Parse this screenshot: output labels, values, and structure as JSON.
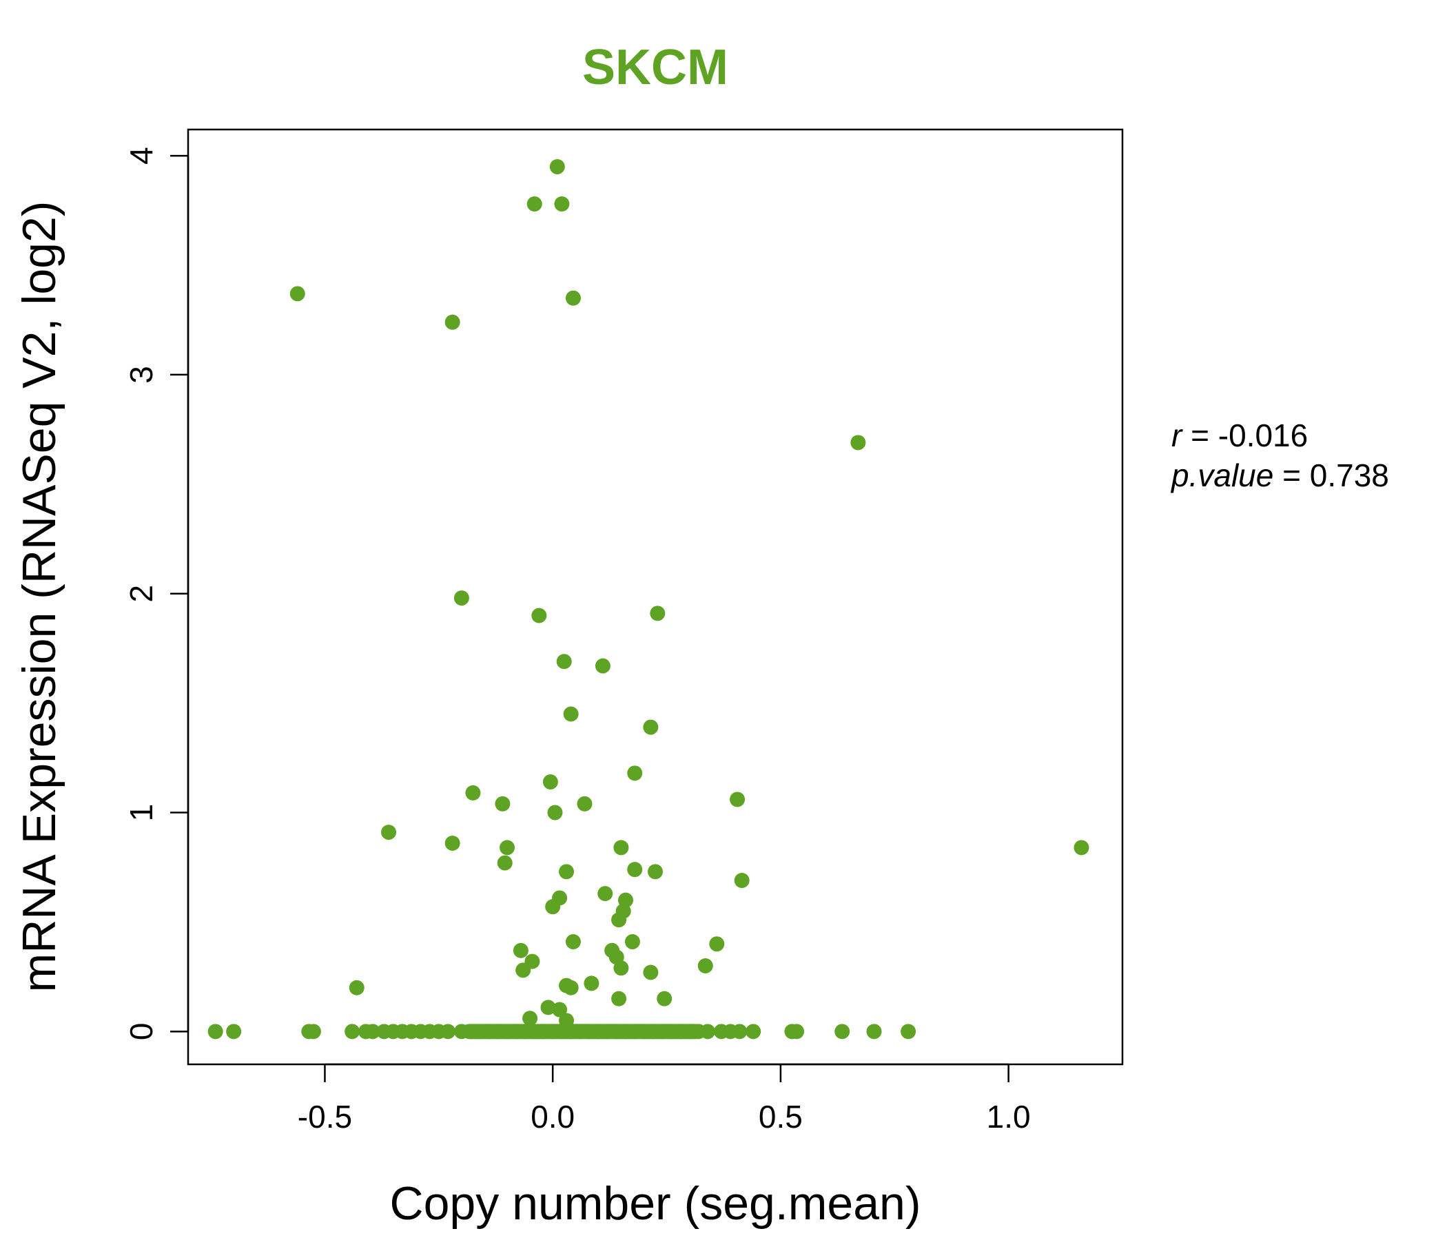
{
  "chart_data": {
    "type": "scatter",
    "title": "SKCM",
    "xlabel": "Copy number (seg.mean)",
    "ylabel": "mRNA Expression (RNASeq V2, log2)",
    "xlim": [
      -0.8,
      1.25
    ],
    "ylim": [
      -0.15,
      4.12
    ],
    "xticks": [
      -0.5,
      0.0,
      0.5,
      1.0
    ],
    "xtick_labels": [
      "-0.5",
      "0.0",
      "0.5",
      "1.0"
    ],
    "yticks": [
      0,
      1,
      2,
      3,
      4
    ],
    "ytick_labels": [
      "0",
      "1",
      "2",
      "3",
      "4"
    ],
    "grid": false,
    "point_color": "#5fa324",
    "title_color": "#5fa324",
    "stats": {
      "r_label": "r",
      "r_value": "-0.016",
      "p_label": "p.value",
      "p_value": "0.738"
    },
    "series": [
      {
        "x": [
          0.01,
          -0.04,
          0.02,
          -0.56,
          0.045,
          -0.22,
          0.67,
          -0.2,
          -0.03,
          0.23,
          0.025,
          0.11,
          0.04,
          0.215,
          0.18,
          -0.005,
          -0.175,
          -0.11,
          0.07,
          0.005,
          0.405,
          -0.36,
          -0.22,
          1.16,
          0.15,
          -0.1,
          -0.105,
          0.03,
          0.225,
          0.18,
          0.415,
          0.015,
          0.115,
          0.16,
          0.0,
          0.155,
          0.145,
          0.045,
          0.175,
          0.36,
          0.13,
          -0.07,
          0.14,
          -0.045,
          0.335,
          -0.065,
          0.15,
          0.215,
          0.085,
          -0.43,
          0.03,
          0.04,
          0.145,
          0.245,
          -0.01,
          0.015,
          -0.05,
          0.03,
          -0.74,
          -0.7,
          -0.535,
          -0.525,
          -0.44,
          -0.41,
          -0.395,
          -0.37,
          -0.35,
          -0.33,
          -0.31,
          -0.29,
          -0.27,
          -0.25,
          -0.23,
          -0.2,
          -0.18,
          -0.16,
          -0.14,
          -0.12,
          -0.1,
          -0.08,
          -0.06,
          -0.04,
          -0.02,
          0.0,
          0.02,
          0.04,
          0.06,
          0.08,
          0.1,
          0.12,
          0.14,
          0.16,
          0.18,
          0.2,
          0.22,
          0.24,
          0.26,
          0.28,
          0.3,
          0.32,
          0.34,
          0.37,
          0.39,
          0.41,
          0.44,
          0.525,
          0.535,
          0.635,
          0.705,
          0.78
        ],
        "y": [
          3.95,
          3.78,
          3.78,
          3.37,
          3.35,
          3.24,
          2.69,
          1.98,
          1.9,
          1.91,
          1.69,
          1.67,
          1.45,
          1.39,
          1.18,
          1.14,
          1.09,
          1.04,
          1.04,
          1.0,
          1.06,
          0.91,
          0.86,
          0.84,
          0.84,
          0.84,
          0.77,
          0.73,
          0.73,
          0.74,
          0.69,
          0.61,
          0.63,
          0.6,
          0.57,
          0.55,
          0.51,
          0.41,
          0.41,
          0.4,
          0.37,
          0.37,
          0.34,
          0.32,
          0.3,
          0.28,
          0.29,
          0.27,
          0.22,
          0.2,
          0.21,
          0.2,
          0.15,
          0.15,
          0.11,
          0.1,
          0.06,
          0.05,
          0.0,
          0.0,
          0.0,
          0.0,
          0.0,
          0.0,
          0.0,
          0.0,
          0.0,
          0.0,
          0.0,
          0.0,
          0.0,
          0.0,
          0.0,
          0.0,
          0.0,
          0.0,
          0.0,
          0.0,
          0.0,
          0.0,
          0.0,
          0.0,
          0.0,
          0.0,
          0.0,
          0.0,
          0.0,
          0.0,
          0.0,
          0.0,
          0.0,
          0.0,
          0.0,
          0.0,
          0.0,
          0.0,
          0.0,
          0.0,
          0.0,
          0.0,
          0.0,
          0.0,
          0.0,
          0.0,
          0.0,
          0.0,
          0.0,
          0.0,
          0.0,
          0.0
        ]
      }
    ]
  }
}
